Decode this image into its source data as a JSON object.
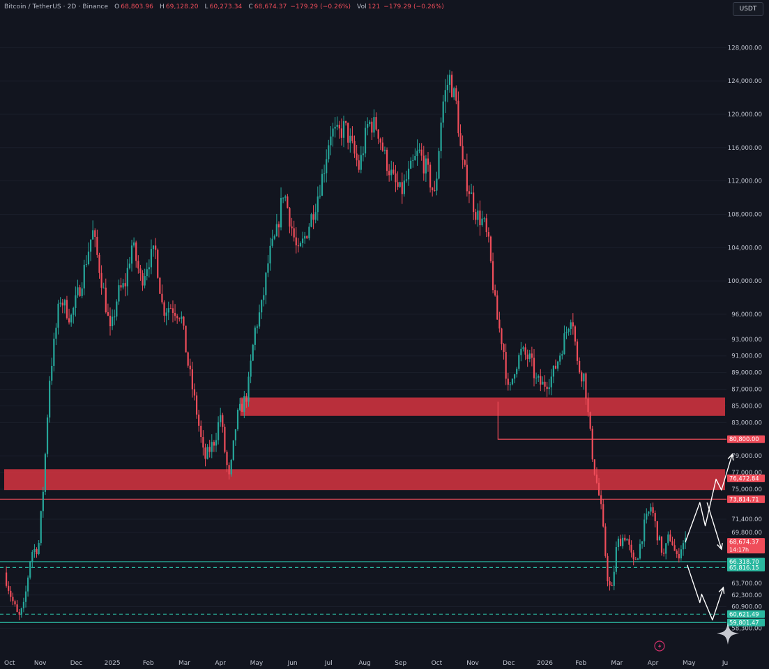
{
  "legend": {
    "symbol": "Bitcoin / TetherUS · 2D · Binance",
    "o_label": "O",
    "o_value": "68,803.96",
    "h_label": "H",
    "h_value": "69,128.20",
    "l_label": "L",
    "l_value": "60,273.34",
    "c_label": "C",
    "c_value": "68,674.37",
    "change": "−179.29 (−0.26%)",
    "vol_label": "Vol",
    "vol_value": "121",
    "vol_change": "−179.29 (−0.26%)"
  },
  "currency_button": "USDT",
  "colors": {
    "background": "#12151f",
    "up": "#26a69a",
    "down": "#ef4d5a",
    "zone": "#c8323e",
    "support": "#2bb8a0",
    "projection": "#ffffff"
  },
  "chart_data": {
    "type": "candlestick",
    "ylim": [
      57600,
      129200
    ],
    "y_ticks": [
      {
        "value": 128000,
        "label": "128,000.00"
      },
      {
        "value": 124000,
        "label": "124,000.00"
      },
      {
        "value": 120000,
        "label": "120,000.00"
      },
      {
        "value": 116000,
        "label": "116,000.00"
      },
      {
        "value": 112000,
        "label": "112,000.00"
      },
      {
        "value": 108000,
        "label": "108,000.00"
      },
      {
        "value": 104000,
        "label": "104,000.00"
      },
      {
        "value": 100000,
        "label": "100,000.00"
      },
      {
        "value": 96000,
        "label": "96,000.00"
      },
      {
        "value": 93000,
        "label": "93,000.00"
      },
      {
        "value": 91000,
        "label": "91,000.00"
      },
      {
        "value": 89000,
        "label": "89,000.00"
      },
      {
        "value": 87000,
        "label": "87,000.00"
      },
      {
        "value": 85000,
        "label": "85,000.00"
      },
      {
        "value": 83000,
        "label": "83,000.00"
      },
      {
        "value": 79000,
        "label": "79,000.00"
      },
      {
        "value": 77000,
        "label": "77,000.00"
      },
      {
        "value": 75000,
        "label": "75,000.00"
      },
      {
        "value": 71400,
        "label": "71,400.00"
      },
      {
        "value": 69800,
        "label": "69,800.00"
      },
      {
        "value": 63700,
        "label": "63,700.00"
      },
      {
        "value": 62300,
        "label": "62,300.00"
      },
      {
        "value": 60900,
        "label": "60,900.00"
      },
      {
        "value": 58300,
        "label": "58,300.00"
      }
    ],
    "x_ticks": [
      "Oct",
      "Nov",
      "Dec",
      "2025",
      "Feb",
      "Mar",
      "Apr",
      "May",
      "Jun",
      "Jul",
      "Aug",
      "Sep",
      "Oct",
      "Nov",
      "Dec",
      "2026",
      "Feb",
      "Mar",
      "Apr",
      "May",
      "Ju"
    ],
    "x_tick_times": [
      0,
      1,
      2,
      3,
      4,
      5,
      6,
      7,
      8,
      9,
      10,
      11,
      12,
      13,
      14,
      15,
      16,
      17,
      18,
      19,
      20
    ],
    "anchors": [
      [
        0.0,
        65000
      ],
      [
        0.2,
        62000
      ],
      [
        0.4,
        59500
      ],
      [
        0.55,
        61000
      ],
      [
        0.75,
        67500
      ],
      [
        0.95,
        68000
      ],
      [
        1.1,
        76000
      ],
      [
        1.25,
        88000
      ],
      [
        1.55,
        98000
      ],
      [
        1.85,
        95500
      ],
      [
        2.15,
        100000
      ],
      [
        2.45,
        106000
      ],
      [
        2.75,
        99000
      ],
      [
        2.95,
        93500
      ],
      [
        3.15,
        98500
      ],
      [
        3.35,
        99500
      ],
      [
        3.55,
        104500
      ],
      [
        3.8,
        100000
      ],
      [
        4.0,
        102500
      ],
      [
        4.2,
        103500
      ],
      [
        4.4,
        96500
      ],
      [
        4.6,
        97000
      ],
      [
        4.9,
        96000
      ],
      [
        5.1,
        90000
      ],
      [
        5.35,
        84000
      ],
      [
        5.55,
        78500
      ],
      [
        5.85,
        81000
      ],
      [
        6.0,
        84000
      ],
      [
        6.15,
        78500
      ],
      [
        6.25,
        76000
      ],
      [
        6.45,
        83500
      ],
      [
        6.75,
        86500
      ],
      [
        6.95,
        94000
      ],
      [
        7.15,
        97000
      ],
      [
        7.35,
        103000
      ],
      [
        7.55,
        105500
      ],
      [
        7.75,
        111000
      ],
      [
        7.95,
        107000
      ],
      [
        8.15,
        103000
      ],
      [
        8.4,
        106000
      ],
      [
        8.65,
        109500
      ],
      [
        8.85,
        113000
      ],
      [
        9.05,
        118000
      ],
      [
        9.25,
        117500
      ],
      [
        9.45,
        118500
      ],
      [
        9.65,
        116000
      ],
      [
        9.85,
        113500
      ],
      [
        10.1,
        119000
      ],
      [
        10.35,
        118500
      ],
      [
        10.55,
        115000
      ],
      [
        10.8,
        112000
      ],
      [
        11.0,
        110500
      ],
      [
        11.25,
        113000
      ],
      [
        11.5,
        115500
      ],
      [
        11.75,
        113000
      ],
      [
        11.95,
        110000
      ],
      [
        12.15,
        121000
      ],
      [
        12.35,
        124500
      ],
      [
        12.55,
        121000
      ],
      [
        12.7,
        114000
      ],
      [
        12.9,
        111000
      ],
      [
        13.1,
        108000
      ],
      [
        13.3,
        107000
      ],
      [
        13.45,
        104000
      ],
      [
        13.65,
        96000
      ],
      [
        13.85,
        92000
      ],
      [
        14.0,
        86000
      ],
      [
        14.15,
        89500
      ],
      [
        14.35,
        91500
      ],
      [
        14.6,
        90500
      ],
      [
        14.75,
        88000
      ],
      [
        14.95,
        87500
      ],
      [
        15.2,
        88500
      ],
      [
        15.4,
        91000
      ],
      [
        15.6,
        94000
      ],
      [
        15.75,
        96500
      ],
      [
        15.9,
        90000
      ],
      [
        16.0,
        89000
      ],
      [
        16.1,
        88500
      ],
      [
        16.22,
        83000
      ],
      [
        16.35,
        78000
      ],
      [
        16.55,
        73000
      ],
      [
        16.75,
        64000
      ],
      [
        16.85,
        62500
      ],
      [
        17.0,
        68500
      ],
      [
        17.25,
        69500
      ],
      [
        17.45,
        66000
      ],
      [
        17.6,
        67500
      ],
      [
        17.75,
        70500
      ],
      [
        17.95,
        73000
      ],
      [
        18.15,
        69000
      ],
      [
        18.3,
        67000
      ],
      [
        18.45,
        69500
      ],
      [
        18.55,
        68500
      ],
      [
        18.65,
        66500
      ],
      [
        18.8,
        68400
      ],
      [
        18.9,
        68674
      ]
    ],
    "resistance_zones": [
      {
        "low": 83800,
        "high": 86000,
        "x_start": 6.55,
        "x_end": 20.0
      },
      {
        "low": 74900,
        "high": 77400,
        "x_start": 0.0,
        "x_end": 20.0
      }
    ],
    "horizontal_lines": [
      {
        "value": 73800,
        "style": "solid",
        "color": "#ef4d5a"
      },
      {
        "value": 66300,
        "style": "solid",
        "color": "#2bb8a0"
      },
      {
        "value": 65600,
        "style": "dashed",
        "color": "#2bb8a0"
      },
      {
        "value": 60000,
        "style": "dashed",
        "color": "#2bb8a0"
      },
      {
        "value": 59000,
        "style": "solid",
        "color": "#2bb8a0"
      }
    ],
    "bracket": {
      "x_start": 13.7,
      "x_end": 20.0,
      "top": 85500,
      "value": 81000
    },
    "price_tags": [
      {
        "value": 81000,
        "label": "80,800.00",
        "color": "#ef4d5a"
      },
      {
        "value": 76300,
        "label": "76,472.84",
        "color": "#ef4d5a"
      },
      {
        "value": 73800,
        "label": "73,814.71",
        "color": "#ef4d5a"
      },
      {
        "value": 68674,
        "label": "68,674.37",
        "sub": "14:17h",
        "color": "#ef4d5a"
      },
      {
        "value": 66300,
        "label": "66,318.70",
        "color": "#2bb8a0"
      },
      {
        "value": 65600,
        "label": "65,816.15",
        "color": "#2bb8a0"
      },
      {
        "value": 60000,
        "label": "60,621.49",
        "color": "#2bb8a0"
      },
      {
        "value": 59000,
        "label": "59,801.47",
        "color": "#2bb8a0"
      }
    ],
    "projection_up": [
      [
        18.9,
        68674
      ],
      [
        19.3,
        73400
      ],
      [
        19.45,
        70600
      ],
      [
        19.75,
        76200
      ],
      [
        19.9,
        74900
      ],
      [
        20.2,
        79200
      ]
    ],
    "projection_up_down": [
      [
        19.5,
        73400
      ],
      [
        19.9,
        67800
      ]
    ],
    "projection_down": [
      [
        18.95,
        65900
      ],
      [
        19.3,
        61400
      ],
      [
        19.35,
        62400
      ],
      [
        19.65,
        59300
      ],
      [
        19.95,
        63200
      ]
    ]
  }
}
